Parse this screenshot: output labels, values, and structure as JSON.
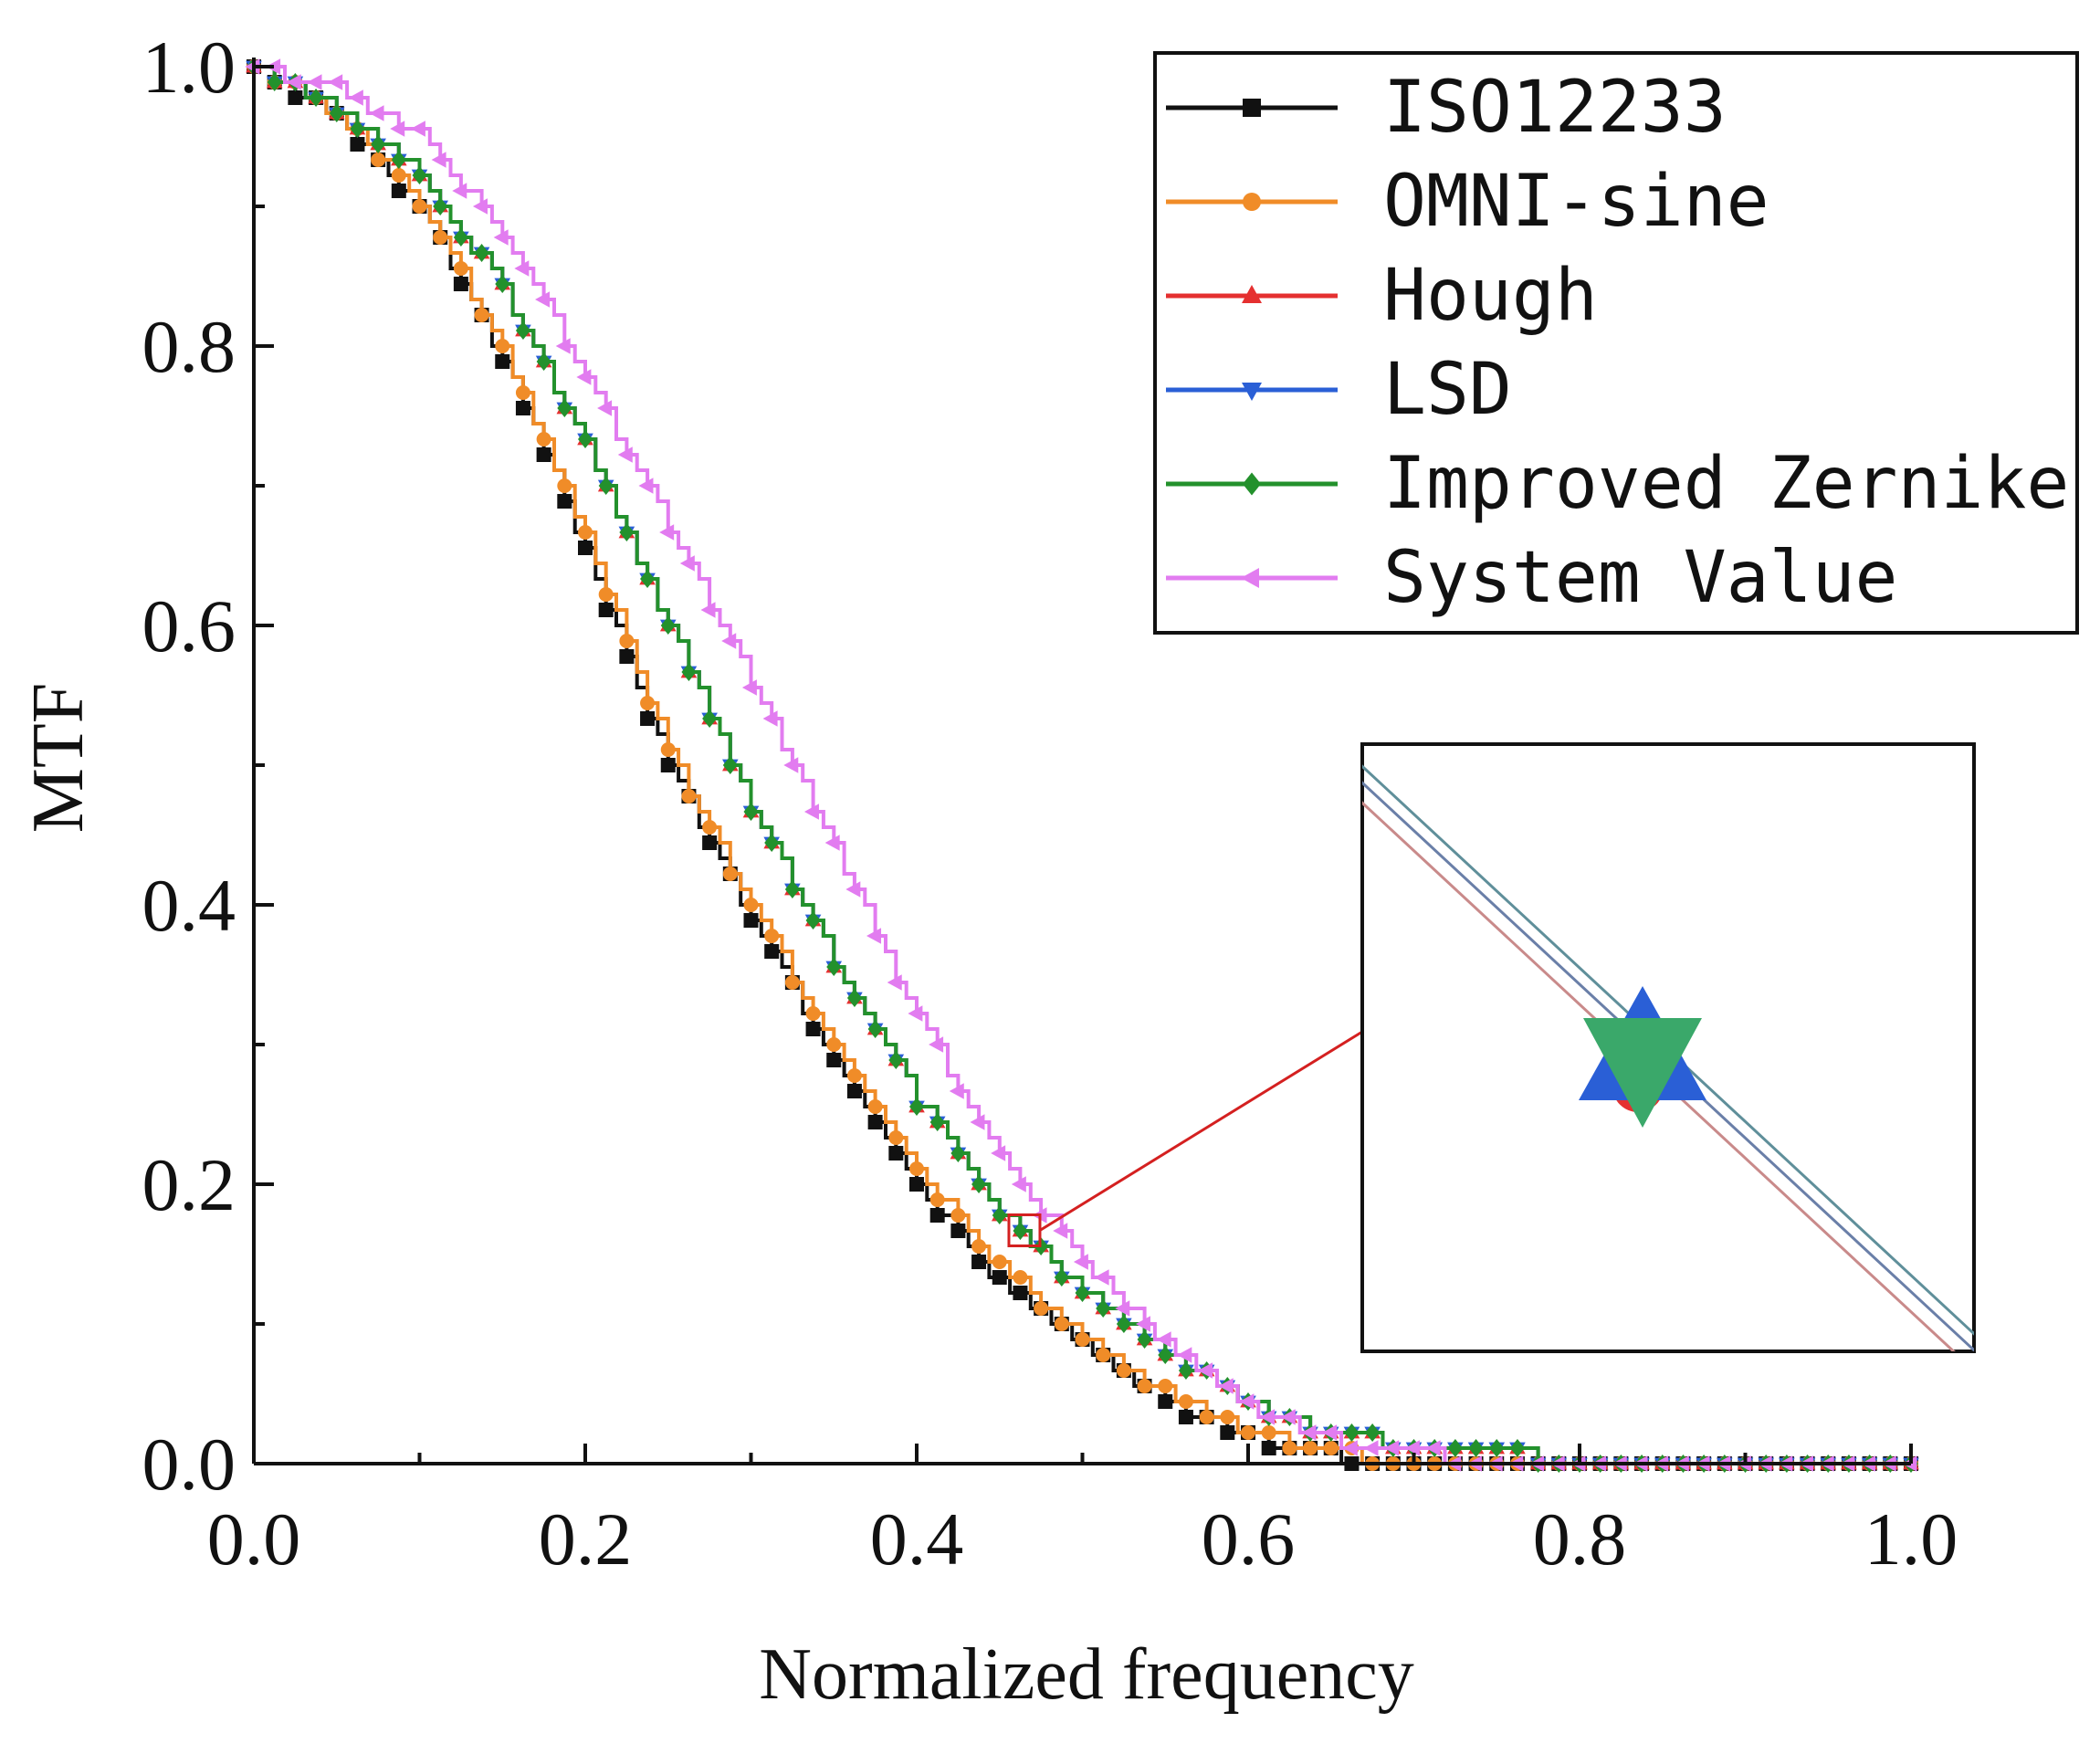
{
  "chart_data": {
    "type": "line",
    "title": "",
    "xlabel": "Normalized frequency",
    "ylabel": "MTF",
    "xlim": [
      0,
      1
    ],
    "ylim": [
      0,
      1
    ],
    "x_ticks": [
      "0.0",
      "0.2",
      "0.4",
      "0.6",
      "0.8",
      "1.0"
    ],
    "y_ticks": [
      "0.0",
      "0.2",
      "0.4",
      "0.6",
      "0.8",
      "1.0"
    ],
    "legend_position": "top-right",
    "series": [
      {
        "name": "ISO12233",
        "color": "#111111",
        "marker": "square",
        "x": [
          0,
          0.05,
          0.1,
          0.15,
          0.2,
          0.25,
          0.3,
          0.35,
          0.4,
          0.45,
          0.5,
          0.55,
          0.6,
          0.65,
          0.7,
          0.75,
          0.8,
          0.85,
          0.9,
          0.95,
          1.0
        ],
        "y": [
          1.0,
          0.965,
          0.9,
          0.79,
          0.655,
          0.5,
          0.39,
          0.29,
          0.2,
          0.13,
          0.085,
          0.045,
          0.02,
          0.006,
          0.0,
          0.0,
          0.0,
          0.0,
          0.0,
          0.0,
          0.0
        ]
      },
      {
        "name": "OMNI-sine",
        "color": "#f08c28",
        "marker": "circle",
        "x": [
          0,
          0.05,
          0.1,
          0.15,
          0.2,
          0.25,
          0.3,
          0.35,
          0.4,
          0.45,
          0.5,
          0.55,
          0.6,
          0.65,
          0.7,
          0.75,
          0.8,
          0.85,
          0.9,
          0.95,
          1.0
        ],
        "y": [
          1.0,
          0.967,
          0.905,
          0.795,
          0.665,
          0.51,
          0.4,
          0.3,
          0.21,
          0.14,
          0.092,
          0.05,
          0.024,
          0.008,
          0.0,
          0.0,
          0.0,
          0.0,
          0.0,
          0.0,
          0.0
        ]
      },
      {
        "name": "Hough",
        "color": "#e53030",
        "marker": "triangle-up",
        "x": [
          0,
          0.05,
          0.1,
          0.15,
          0.2,
          0.25,
          0.3,
          0.35,
          0.4,
          0.45,
          0.5,
          0.55,
          0.6,
          0.65,
          0.7,
          0.75,
          0.8,
          0.85,
          0.9,
          0.95,
          1.0
        ],
        "y": [
          1.0,
          0.972,
          0.925,
          0.84,
          0.73,
          0.6,
          0.47,
          0.36,
          0.26,
          0.18,
          0.125,
          0.08,
          0.043,
          0.022,
          0.012,
          0.007,
          0.004,
          0.002,
          0.001,
          0.0,
          0.0
        ]
      },
      {
        "name": "LSD",
        "color": "#2a5fd6",
        "marker": "triangle-down",
        "x": [
          0,
          0.05,
          0.1,
          0.15,
          0.2,
          0.25,
          0.3,
          0.35,
          0.4,
          0.45,
          0.5,
          0.55,
          0.6,
          0.65,
          0.7,
          0.75,
          0.8,
          0.85,
          0.9,
          0.95,
          1.0
        ],
        "y": [
          1.0,
          0.972,
          0.925,
          0.84,
          0.73,
          0.6,
          0.47,
          0.36,
          0.26,
          0.18,
          0.125,
          0.08,
          0.043,
          0.022,
          0.012,
          0.007,
          0.004,
          0.002,
          0.001,
          0.0,
          0.0
        ]
      },
      {
        "name": "Improved Zernike",
        "color": "#23912c",
        "marker": "diamond",
        "x": [
          0,
          0.05,
          0.1,
          0.15,
          0.2,
          0.25,
          0.3,
          0.35,
          0.4,
          0.45,
          0.5,
          0.55,
          0.6,
          0.65,
          0.7,
          0.75,
          0.8,
          0.85,
          0.9,
          0.95,
          1.0
        ],
        "y": [
          1.0,
          0.972,
          0.925,
          0.84,
          0.73,
          0.6,
          0.47,
          0.36,
          0.26,
          0.18,
          0.125,
          0.08,
          0.043,
          0.022,
          0.012,
          0.007,
          0.004,
          0.002,
          0.001,
          0.0,
          0.0
        ]
      },
      {
        "name": "System Value",
        "color": "#e27cf0",
        "marker": "triangle-left",
        "x": [
          0,
          0.05,
          0.1,
          0.15,
          0.2,
          0.25,
          0.3,
          0.35,
          0.4,
          0.45,
          0.5,
          0.55,
          0.6,
          0.65,
          0.7,
          0.75,
          0.8,
          0.85,
          0.9,
          0.95,
          1.0
        ],
        "y": [
          1.0,
          0.985,
          0.95,
          0.88,
          0.78,
          0.67,
          0.56,
          0.44,
          0.32,
          0.22,
          0.145,
          0.085,
          0.04,
          0.018,
          0.007,
          0.003,
          0.001,
          0.0,
          0.0,
          0.0,
          0.0
        ]
      }
    ],
    "zoom_region": {
      "x_range": [
        0.455,
        0.475
      ],
      "y_range": [
        0.155,
        0.18
      ],
      "focus_x": 0.465,
      "focus_y": 0.167
    }
  }
}
